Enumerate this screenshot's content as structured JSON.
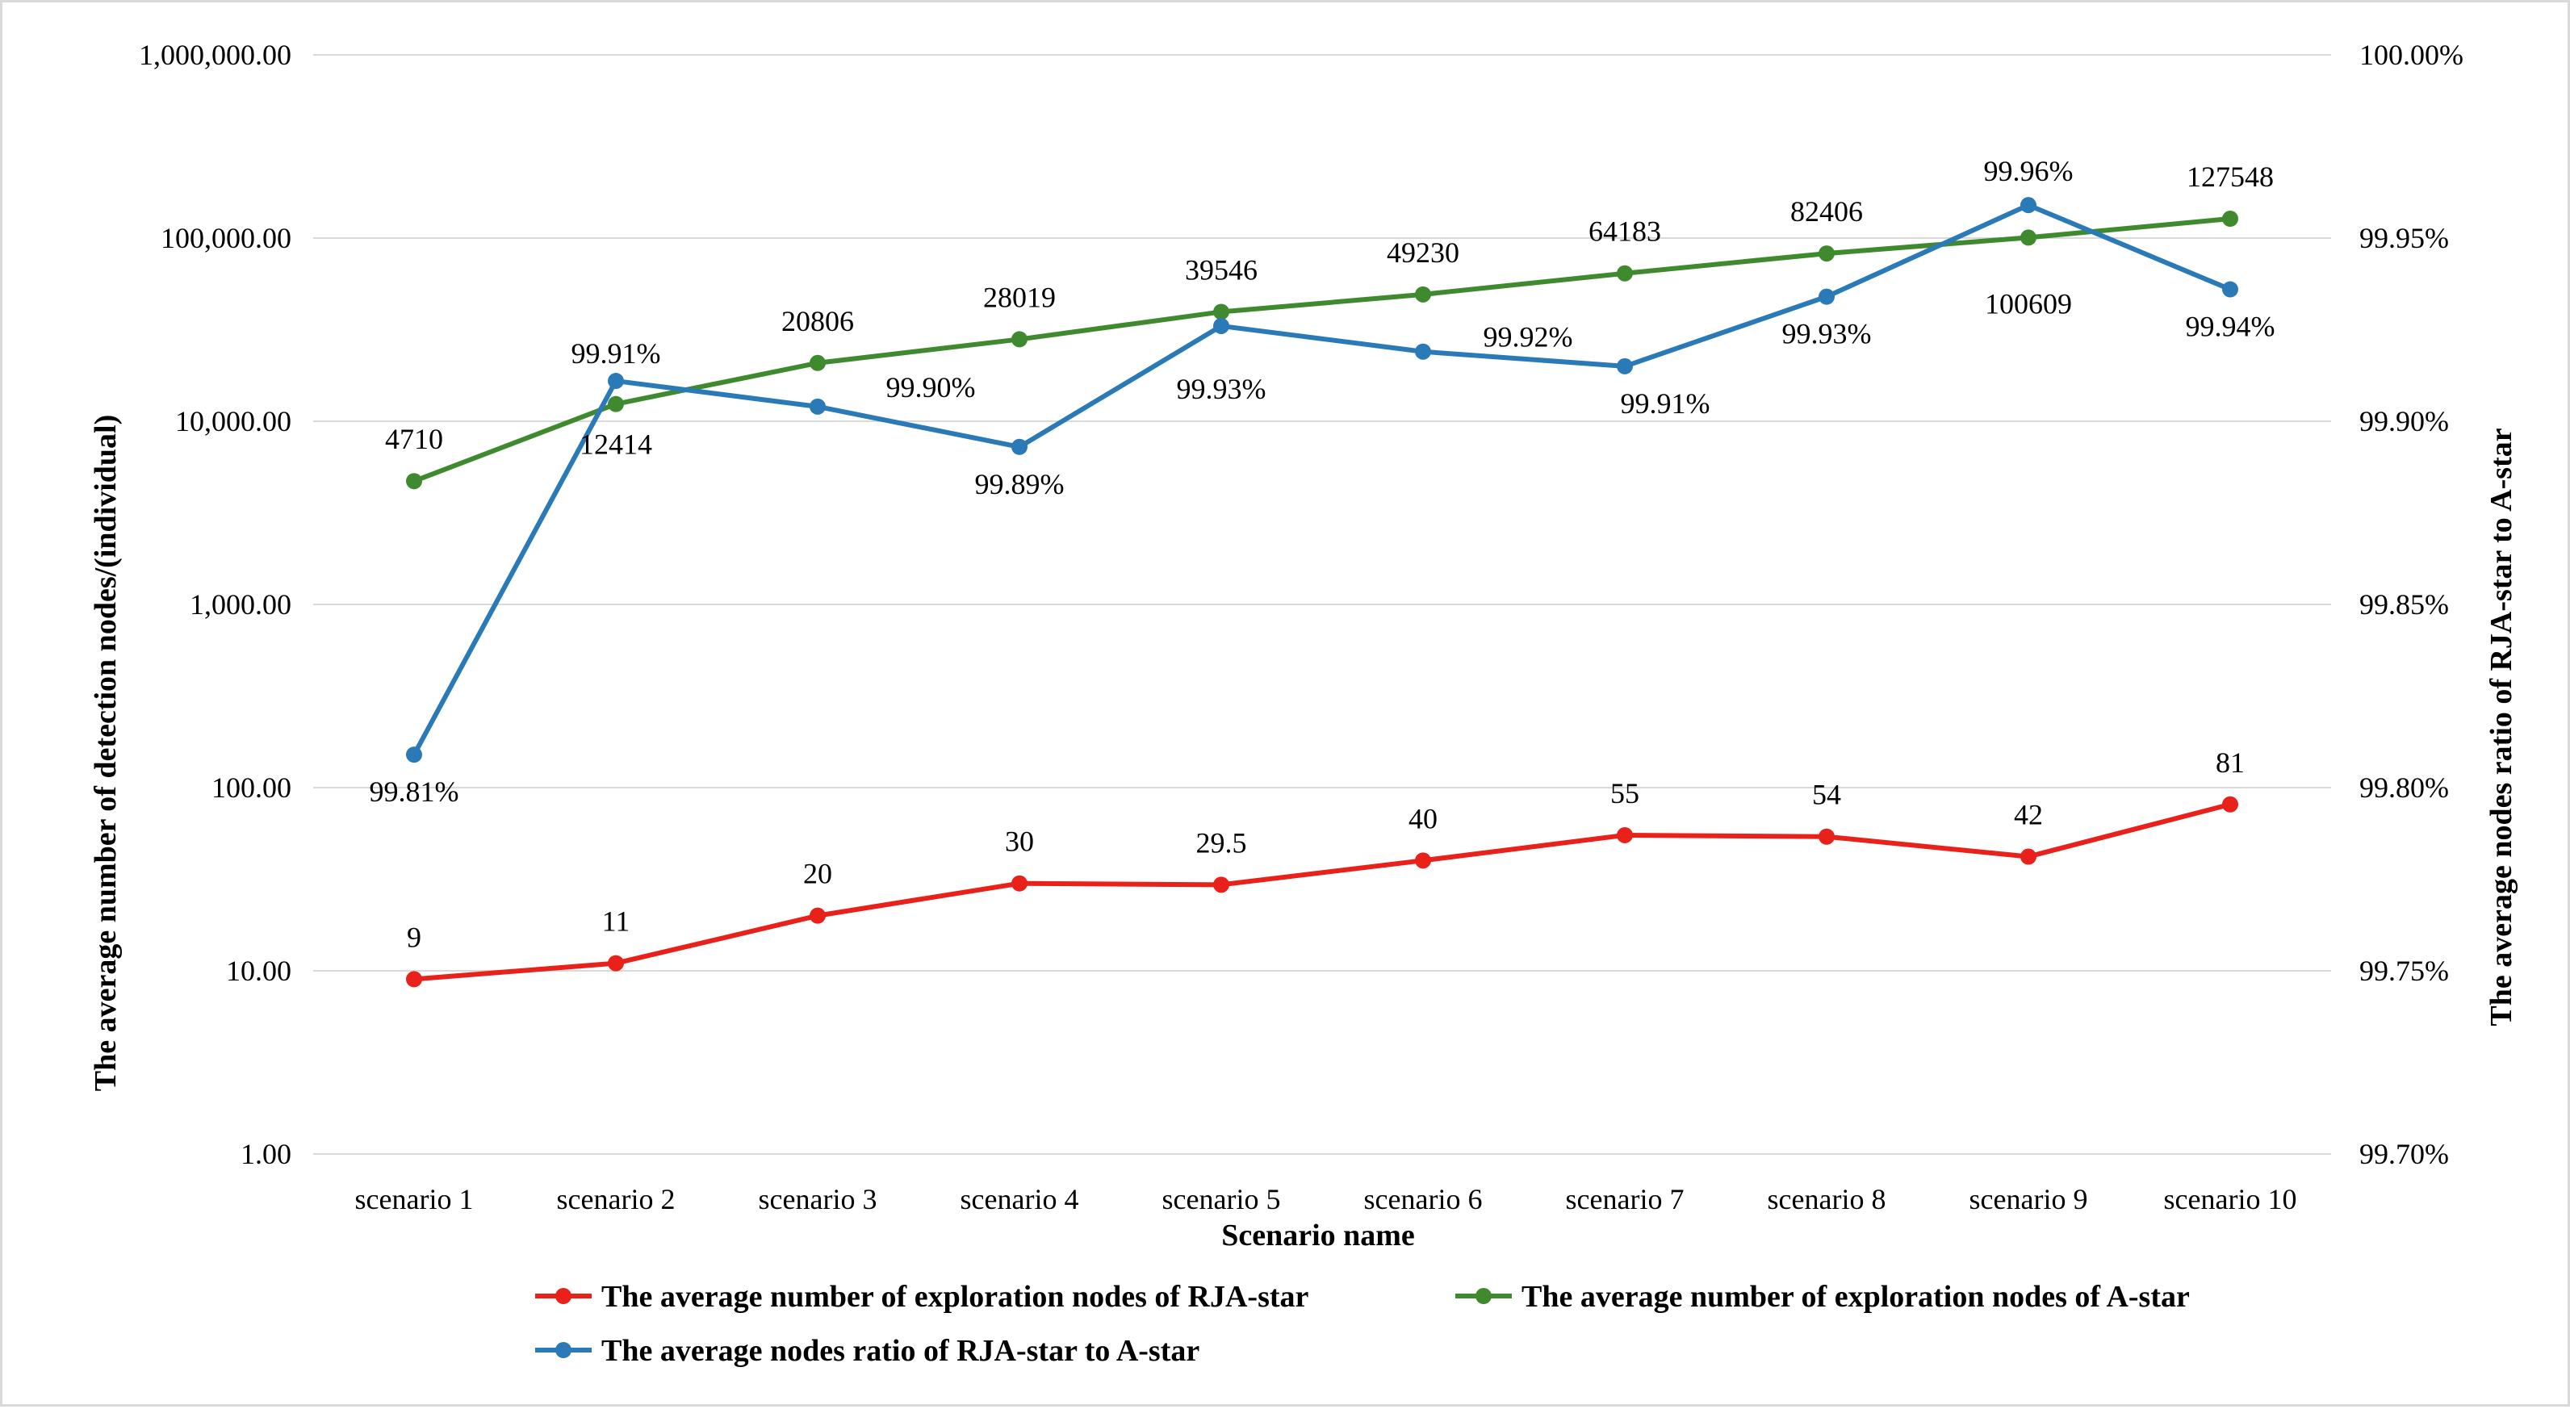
{
  "chart_data": {
    "type": "line",
    "title": "",
    "xlabel": "Scenario name",
    "ylabel": "The average number of detection nodes/(individual)",
    "y2label": "The average nodes ratio of RJA-star to A-star",
    "yscale": "log",
    "ylim": [
      1,
      1000000
    ],
    "y_ticks": [
      "1.00",
      "10.00",
      "100.00",
      "1,000.00",
      "10,000.00",
      "100,000.00",
      "1,000,000.00"
    ],
    "y2lim": [
      99.7,
      100.0
    ],
    "y2_ticks": [
      "99.70%",
      "99.75%",
      "99.80%",
      "99.85%",
      "99.90%",
      "99.95%",
      "100.00%"
    ],
    "grid": true,
    "legend_position": "bottom",
    "categories": [
      "scenario 1",
      "scenario 2",
      "scenario 3",
      "scenario 4",
      "scenario 5",
      "scenario 6",
      "scenario 7",
      "scenario 8",
      "scenario 9",
      "scenario 10"
    ],
    "series": [
      {
        "name": "The average number of exploration nodes of RJA-star",
        "color": "#e8211b",
        "axis": "left",
        "values": [
          9,
          11,
          20,
          30,
          29.5,
          40,
          55,
          54,
          42,
          81
        ],
        "labels": [
          "9",
          "11",
          "20",
          "30",
          "29.5",
          "40",
          "55",
          "54",
          "42",
          "81"
        ]
      },
      {
        "name": "The average number of exploration nodes of A-star",
        "color": "#3f8a2f",
        "axis": "left",
        "values": [
          4710,
          12414,
          20806,
          28019,
          39546,
          49230,
          64183,
          82406,
          100609,
          127548
        ],
        "labels": [
          "4710",
          "12414",
          "20806",
          "28019",
          "39546",
          "49230",
          "64183",
          "82406",
          "100609",
          "127548"
        ]
      },
      {
        "name": "The average nodes ratio of RJA-star to A-star",
        "color": "#2a7ab8",
        "axis": "right",
        "values": [
          99.809,
          99.911,
          99.904,
          99.893,
          99.926,
          99.919,
          99.915,
          99.934,
          99.959,
          99.936
        ],
        "labels": [
          "99.81%",
          "99.91%",
          "99.90%",
          "99.89%",
          "99.93%",
          "99.92%",
          "99.91%",
          "99.93%",
          "99.96%",
          "99.94%"
        ]
      }
    ]
  }
}
